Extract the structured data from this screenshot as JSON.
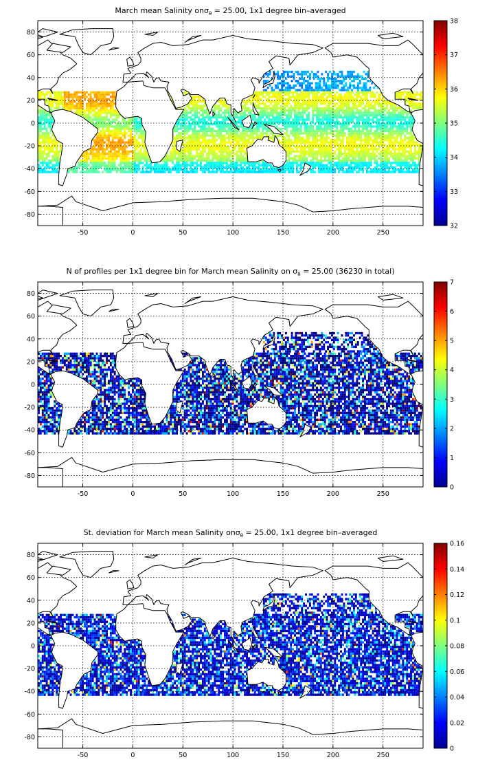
{
  "chart_data": [
    {
      "type": "heatmap",
      "title_parts": [
        "March mean Salinity onσ",
        "θ",
        " = 25.00, 1x1 degree bin–averaged"
      ],
      "xlim": [
        -95,
        290
      ],
      "ylim": [
        -90,
        90
      ],
      "xticks": [
        -50,
        0,
        50,
        100,
        150,
        200,
        250
      ],
      "yticks": [
        -80,
        -60,
        -40,
        -20,
        0,
        20,
        40,
        60,
        80
      ],
      "colorbar": {
        "min": 32,
        "max": 38,
        "ticks": [
          32,
          33,
          34,
          35,
          36,
          37,
          38
        ]
      },
      "grid": true,
      "field": "salinity"
    },
    {
      "type": "heatmap",
      "title_parts": [
        "N of profiles per 1x1 degree bin for March mean Salinity on σ",
        "θ",
        " = 25.00 (36230 in total)"
      ],
      "xlim": [
        -95,
        290
      ],
      "ylim": [
        -90,
        90
      ],
      "xticks": [
        -50,
        0,
        50,
        100,
        150,
        200,
        250
      ],
      "yticks": [
        -80,
        -60,
        -40,
        -20,
        0,
        20,
        40,
        60,
        80
      ],
      "colorbar": {
        "min": 0,
        "max": 7,
        "ticks": [
          0,
          1,
          2,
          3,
          4,
          5,
          6,
          7
        ]
      },
      "grid": true,
      "field": "count"
    },
    {
      "type": "heatmap",
      "title_parts": [
        "St. deviation for March mean Salinity onσ",
        "θ",
        " = 25.00, 1x1 degree bin–averaged"
      ],
      "xlim": [
        -95,
        290
      ],
      "ylim": [
        -90,
        90
      ],
      "xticks": [
        -50,
        0,
        50,
        100,
        150,
        200,
        250
      ],
      "yticks": [
        -80,
        -60,
        -40,
        -20,
        0,
        20,
        40,
        60,
        80
      ],
      "colorbar": {
        "min": 0,
        "max": 0.16,
        "ticks": [
          0,
          0.02,
          0.04,
          0.06,
          0.08,
          0.1,
          0.12,
          0.14,
          0.16
        ]
      },
      "grid": true,
      "field": "stdev"
    }
  ]
}
